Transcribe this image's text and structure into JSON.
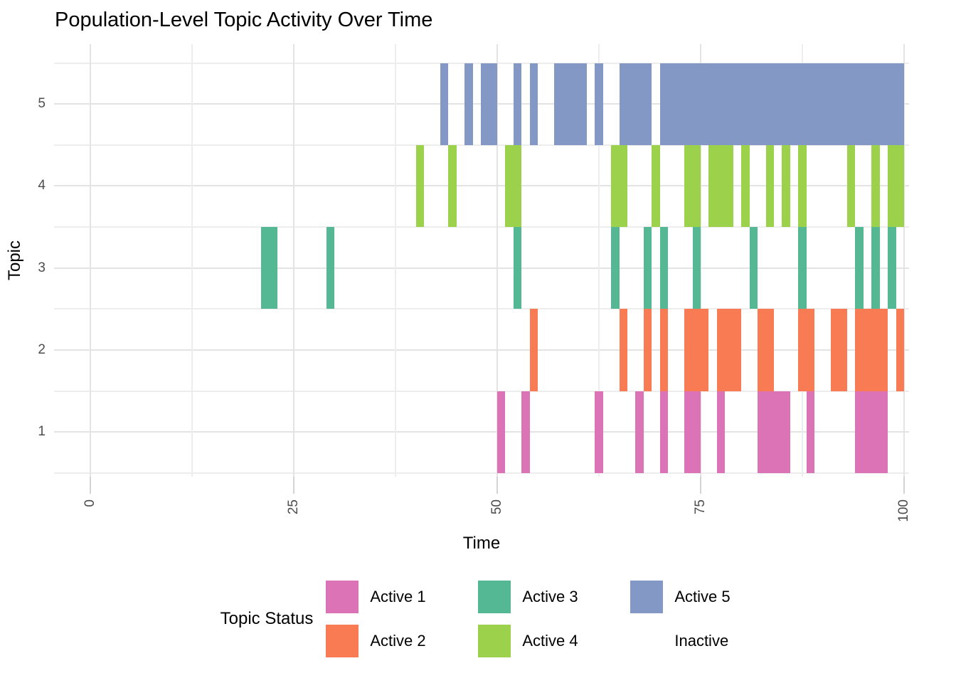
{
  "chart_data": {
    "type": "timeline",
    "title": "Population-Level Topic Activity Over Time",
    "xlabel": "Time",
    "ylabel": "Topic",
    "xlim": [
      0,
      100
    ],
    "x_ticks": [
      0,
      25,
      50,
      75,
      100
    ],
    "x_minor_ticks": [
      12.5,
      37.5,
      62.5,
      87.5
    ],
    "y_categories": [
      1,
      2,
      3,
      4,
      5
    ],
    "grid": true,
    "background": "#ffffff",
    "gridline_color": "#e6e6e6",
    "legend": {
      "title": "Topic Status",
      "position": "bottom",
      "entries": [
        {
          "label": "Active 1",
          "color": "#db73b6"
        },
        {
          "label": "Active 2",
          "color": "#f87b54"
        },
        {
          "label": "Active 3",
          "color": "#55b894"
        },
        {
          "label": "Active 4",
          "color": "#9bd14b"
        },
        {
          "label": "Active 5",
          "color": "#8398c5"
        },
        {
          "label": "Inactive",
          "color": null
        }
      ]
    },
    "series": [
      {
        "topic": 5,
        "status": "Active 5",
        "color": "#8398c5",
        "active_intervals": [
          [
            43,
            44
          ],
          [
            46,
            47
          ],
          [
            48,
            50
          ],
          [
            52,
            53
          ],
          [
            54,
            55
          ],
          [
            57,
            61
          ],
          [
            62,
            63
          ],
          [
            65,
            69
          ],
          [
            70,
            100
          ]
        ]
      },
      {
        "topic": 4,
        "status": "Active 4",
        "color": "#9bd14b",
        "active_intervals": [
          [
            40,
            41
          ],
          [
            44,
            45
          ],
          [
            51,
            53
          ],
          [
            64,
            66
          ],
          [
            69,
            70
          ],
          [
            73,
            75
          ],
          [
            76,
            79
          ],
          [
            80,
            81
          ],
          [
            83,
            84
          ],
          [
            85,
            86
          ],
          [
            87,
            88
          ],
          [
            93,
            94
          ],
          [
            96,
            97
          ],
          [
            98,
            100
          ]
        ]
      },
      {
        "topic": 3,
        "status": "Active 3",
        "color": "#55b894",
        "active_intervals": [
          [
            21,
            23
          ],
          [
            29,
            30
          ],
          [
            52,
            53
          ],
          [
            64,
            65
          ],
          [
            68,
            69
          ],
          [
            70,
            71
          ],
          [
            74,
            75
          ],
          [
            81,
            82
          ],
          [
            87,
            88
          ],
          [
            94,
            95
          ],
          [
            96,
            97
          ],
          [
            98,
            99
          ]
        ]
      },
      {
        "topic": 2,
        "status": "Active 2",
        "color": "#f87b54",
        "active_intervals": [
          [
            54,
            55
          ],
          [
            65,
            66
          ],
          [
            68,
            69
          ],
          [
            70,
            71
          ],
          [
            73,
            76
          ],
          [
            77,
            80
          ],
          [
            82,
            84
          ],
          [
            87,
            89
          ],
          [
            91,
            93
          ],
          [
            94,
            98
          ],
          [
            99,
            100
          ]
        ]
      },
      {
        "topic": 1,
        "status": "Active 1",
        "color": "#db73b6",
        "active_intervals": [
          [
            50,
            51
          ],
          [
            53,
            54
          ],
          [
            62,
            63
          ],
          [
            67,
            68
          ],
          [
            70,
            71
          ],
          [
            73,
            75
          ],
          [
            77,
            78
          ],
          [
            82,
            86
          ],
          [
            88,
            89
          ],
          [
            94,
            98
          ]
        ]
      }
    ]
  }
}
